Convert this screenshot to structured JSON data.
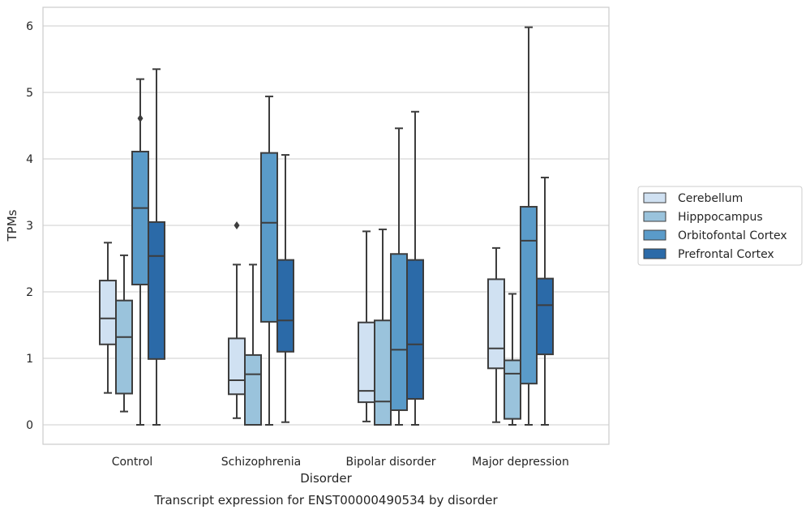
{
  "chart_data": {
    "type": "box",
    "title": "Transcript expression for ENST00000490534 by disorder",
    "xlabel": "Disorder",
    "ylabel": "TPMs",
    "ylim": [
      -0.28,
      6.28
    ],
    "yticks": [
      0,
      1,
      2,
      3,
      4,
      5,
      6
    ],
    "categories": [
      "Control",
      "Schizophrenia",
      "Bipolar disorder",
      "Major depression"
    ],
    "grid": true,
    "legend_position": "right",
    "series": [
      {
        "name": "Cerebellum",
        "color": "#d0e1f2",
        "boxes": [
          {
            "whisker_low": 0.48,
            "q1": 1.21,
            "median": 1.6,
            "q3": 2.17,
            "whisker_high": 2.74,
            "outliers": []
          },
          {
            "whisker_low": 0.1,
            "q1": 0.46,
            "median": 0.67,
            "q3": 1.3,
            "whisker_high": 2.41,
            "outliers": [
              3.0
            ]
          },
          {
            "whisker_low": 0.05,
            "q1": 0.34,
            "median": 0.51,
            "q3": 1.54,
            "whisker_high": 2.91,
            "outliers": []
          },
          {
            "whisker_low": 0.04,
            "q1": 0.85,
            "median": 1.15,
            "q3": 2.19,
            "whisker_high": 2.66,
            "outliers": []
          }
        ]
      },
      {
        "name": "Hipppocampus",
        "color": "#9ac3dc",
        "boxes": [
          {
            "whisker_low": 0.2,
            "q1": 0.47,
            "median": 1.32,
            "q3": 1.87,
            "whisker_high": 2.55,
            "outliers": []
          },
          {
            "whisker_low": 0.0,
            "q1": 0.0,
            "median": 0.76,
            "q3": 1.05,
            "whisker_high": 2.41,
            "outliers": []
          },
          {
            "whisker_low": 0.0,
            "q1": 0.0,
            "median": 0.35,
            "q3": 1.57,
            "whisker_high": 2.94,
            "outliers": []
          },
          {
            "whisker_low": 0.0,
            "q1": 0.09,
            "median": 0.77,
            "q3": 0.97,
            "whisker_high": 1.97,
            "outliers": []
          }
        ]
      },
      {
        "name": "Orbitofontal Cortex",
        "color": "#5a9bc9",
        "boxes": [
          {
            "whisker_low": 0.0,
            "q1": 2.11,
            "median": 3.26,
            "q3": 4.11,
            "whisker_high": 5.2,
            "outliers": [
              4.61
            ]
          },
          {
            "whisker_low": 0.0,
            "q1": 1.55,
            "median": 3.04,
            "q3": 4.09,
            "whisker_high": 4.94,
            "outliers": []
          },
          {
            "whisker_low": 0.0,
            "q1": 0.22,
            "median": 1.13,
            "q3": 2.57,
            "whisker_high": 4.46,
            "outliers": []
          },
          {
            "whisker_low": 0.0,
            "q1": 0.62,
            "median": 2.77,
            "q3": 3.28,
            "whisker_high": 5.98,
            "outliers": []
          }
        ]
      },
      {
        "name": "Prefrontal Cortex",
        "color": "#2b6aa8",
        "boxes": [
          {
            "whisker_low": 0.0,
            "q1": 0.99,
            "median": 2.54,
            "q3": 3.05,
            "whisker_high": 5.35,
            "outliers": []
          },
          {
            "whisker_low": 0.04,
            "q1": 1.1,
            "median": 1.57,
            "q3": 2.48,
            "whisker_high": 4.06,
            "outliers": []
          },
          {
            "whisker_low": 0.0,
            "q1": 0.39,
            "median": 1.21,
            "q3": 2.48,
            "whisker_high": 4.71,
            "outliers": []
          },
          {
            "whisker_low": 0.0,
            "q1": 1.06,
            "median": 1.8,
            "q3": 2.2,
            "whisker_high": 3.72,
            "outliers": []
          }
        ]
      }
    ]
  }
}
